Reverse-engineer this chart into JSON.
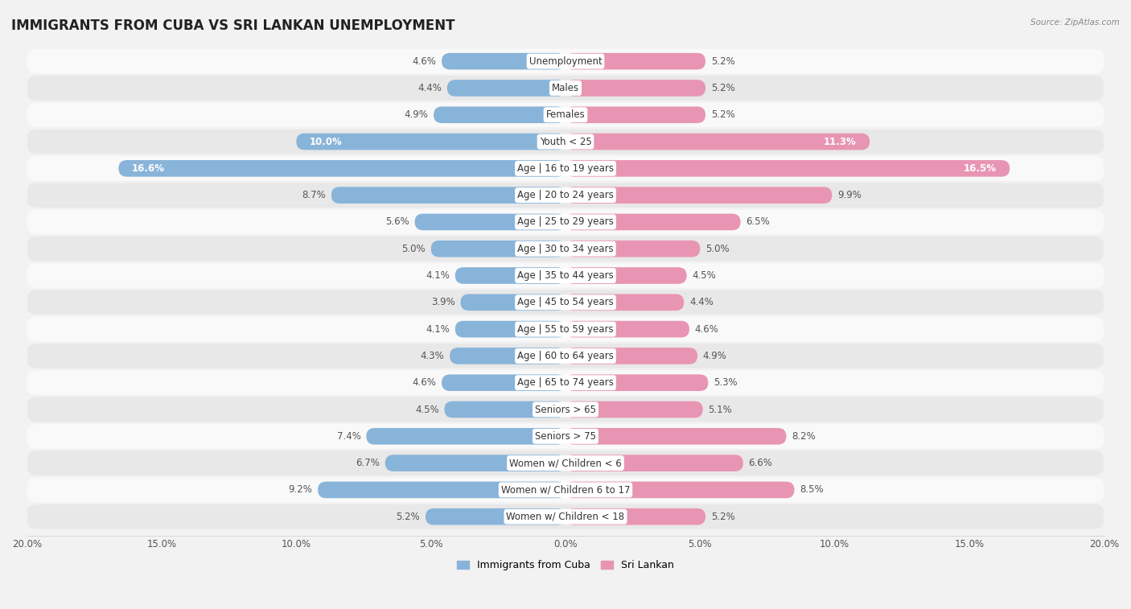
{
  "title": "IMMIGRANTS FROM CUBA VS SRI LANKAN UNEMPLOYMENT",
  "source": "Source: ZipAtlas.com",
  "categories": [
    "Unemployment",
    "Males",
    "Females",
    "Youth < 25",
    "Age | 16 to 19 years",
    "Age | 20 to 24 years",
    "Age | 25 to 29 years",
    "Age | 30 to 34 years",
    "Age | 35 to 44 years",
    "Age | 45 to 54 years",
    "Age | 55 to 59 years",
    "Age | 60 to 64 years",
    "Age | 65 to 74 years",
    "Seniors > 65",
    "Seniors > 75",
    "Women w/ Children < 6",
    "Women w/ Children 6 to 17",
    "Women w/ Children < 18"
  ],
  "cuba_values": [
    4.6,
    4.4,
    4.9,
    10.0,
    16.6,
    8.7,
    5.6,
    5.0,
    4.1,
    3.9,
    4.1,
    4.3,
    4.6,
    4.5,
    7.4,
    6.7,
    9.2,
    5.2
  ],
  "srilanka_values": [
    5.2,
    5.2,
    5.2,
    11.3,
    16.5,
    9.9,
    6.5,
    5.0,
    4.5,
    4.4,
    4.6,
    4.9,
    5.3,
    5.1,
    8.2,
    6.6,
    8.5,
    5.2
  ],
  "cuba_color": "#89b4d9",
  "srilanka_color": "#e895b3",
  "axis_max": 20.0,
  "background_color": "#f2f2f2",
  "row_color_even": "#f9f9f9",
  "row_color_odd": "#e8e8e8",
  "legend_cuba": "Immigrants from Cuba",
  "legend_srilanka": "Sri Lankan",
  "title_fontsize": 12,
  "label_fontsize": 8.5,
  "value_fontsize": 8.5,
  "tick_fontsize": 8.5
}
